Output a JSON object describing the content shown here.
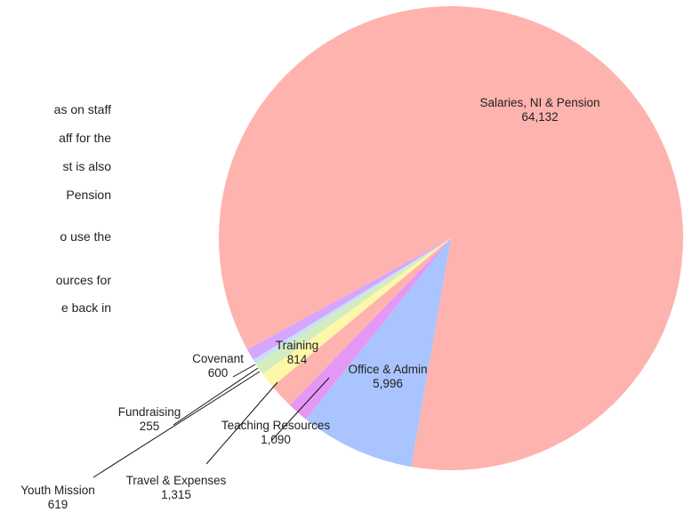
{
  "left_text": [
    "as on staff",
    "aff for the",
    "st is also",
    "Pension",
    "o use the",
    "ources for",
    "e back in"
  ],
  "chart_data": {
    "type": "pie",
    "categories": [
      "Salaries, NI & Pension",
      "Office & Admin",
      "Teaching Resources",
      "Travel & Expenses",
      "Training",
      "Youth Mission",
      "Fundraising",
      "Covenant"
    ],
    "values": [
      64132,
      5996,
      1090,
      1315,
      814,
      619,
      255,
      600
    ],
    "value_labels": [
      "64,132",
      "5,996",
      "1,090",
      "1,315",
      "814",
      "619",
      "255",
      "600"
    ],
    "colors": [
      "#ffb3ae",
      "#a9c4fe",
      "#e597f5",
      "#ffb3ae",
      "#fdf7a8",
      "#d3edc1",
      "#c6e0f5",
      "#d6a5fe"
    ]
  }
}
